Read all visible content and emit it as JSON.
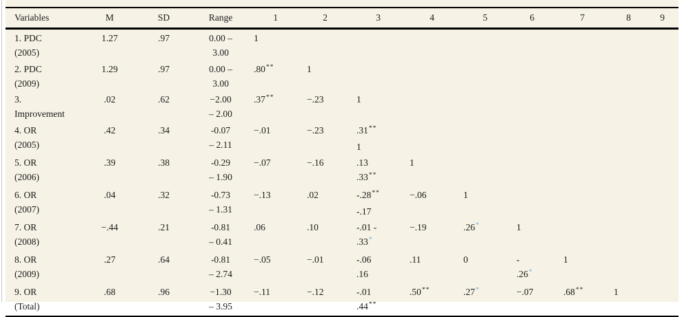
{
  "colors": {
    "page_background": "#f6f2e5",
    "margin_background": "#ffffff",
    "rule_color": "#000000",
    "text_color": "#1b1b1b",
    "footnote_link_blue": "#64acdb"
  },
  "table": {
    "headers": [
      "Variables",
      "M",
      "SD",
      "Range",
      "1",
      "2",
      "3",
      "4",
      "5",
      "6",
      "7",
      "8",
      "9"
    ],
    "rows": [
      {
        "variable": [
          "1. PDC",
          "(2005)"
        ],
        "m": "1.27",
        "sd": ".97",
        "range": [
          "0.00 –",
          "3.00"
        ],
        "corr": {
          "c1": [
            {
              "text": "1"
            }
          ]
        }
      },
      {
        "variable": [
          "2. PDC",
          "(2009)"
        ],
        "m": "1.29",
        "sd": ".97",
        "range": [
          "0.00 –",
          "3.00"
        ],
        "corr": {
          "c1": [
            {
              "text": ".80",
              "sup": "**"
            }
          ],
          "c2": [
            {
              "text": "1"
            }
          ]
        }
      },
      {
        "variable": [
          "3.",
          "Improvement"
        ],
        "m": ".02",
        "sd": ".62",
        "range": [
          "−2.00",
          "– 2.00"
        ],
        "corr": {
          "c1": [
            {
              "text": ".37",
              "sup": "**"
            }
          ],
          "c2": [
            {
              "text": "−.23"
            }
          ],
          "c3": [
            {
              "text": "1"
            }
          ]
        }
      },
      {
        "variable": [
          "4. OR",
          "(2005)"
        ],
        "m": ".42",
        "sd": ".34",
        "range": [
          "-0.07",
          "– 2.11"
        ],
        "corr": {
          "c1": [
            {
              "text": "−.01"
            }
          ],
          "c2": [
            {
              "text": "−.23"
            }
          ],
          "c3": [
            {
              "text": ".31",
              "sup": "**"
            },
            {
              "text": "1"
            }
          ]
        }
      },
      {
        "variable": [
          "5. OR",
          "(2006)"
        ],
        "m": ".39",
        "sd": ".38",
        "range": [
          "-0.29",
          "– 1.90"
        ],
        "corr": {
          "c1": [
            {
              "text": "−.07"
            }
          ],
          "c2": [
            {
              "text": "−.16"
            }
          ],
          "c3": [
            {
              "text": ".13"
            },
            {
              "text": ".33",
              "sup": "**"
            }
          ],
          "c4": [
            {
              "text": "1"
            }
          ]
        }
      },
      {
        "variable": [
          "6. OR",
          "(2007)"
        ],
        "m": ".04",
        "sd": ".32",
        "range": [
          "-0.73",
          "– 1.31"
        ],
        "corr": {
          "c1": [
            {
              "text": "−.13"
            }
          ],
          "c2": [
            {
              "text": ".02"
            }
          ],
          "c3": [
            {
              "text": "-.28",
              "sup": "**"
            },
            {
              "text": "-.17"
            }
          ],
          "c4": [
            {
              "text": "−.06"
            }
          ],
          "c5": [
            {
              "text": "1"
            }
          ]
        }
      },
      {
        "variable": [
          "7. OR",
          "(2008)"
        ],
        "m": "−.44",
        "sd": ".21",
        "range": [
          "-0.81",
          "– 0.41"
        ],
        "corr": {
          "c1": [
            {
              "text": ".06"
            }
          ],
          "c2": [
            {
              "text": ".10"
            }
          ],
          "c3": [
            {
              "text": "-.01 -"
            },
            {
              "text": ".33",
              "sup": "*",
              "supBlue": true
            }
          ],
          "c4": [
            {
              "text": "−.19"
            }
          ],
          "c5": [
            {
              "text": ".26",
              "sup": "*",
              "supBlue": true
            }
          ],
          "c6": [
            {
              "text": "1"
            }
          ]
        }
      },
      {
        "variable": [
          "8. OR",
          "(2009)"
        ],
        "m": ".27",
        "sd": ".64",
        "range": [
          "-0.81",
          "– 2.74"
        ],
        "corr": {
          "c1": [
            {
              "text": "−.05"
            }
          ],
          "c2": [
            {
              "text": "−.01"
            }
          ],
          "c3": [
            {
              "text": "-.06"
            },
            {
              "text": ".16"
            }
          ],
          "c4": [
            {
              "text": ".11"
            }
          ],
          "c5": [
            {
              "text": "0"
            }
          ],
          "c6": [
            {
              "text": "-"
            },
            {
              "text": ".26",
              "sup": "*",
              "supBlue": true
            }
          ],
          "c7": [
            {
              "text": "1"
            }
          ]
        }
      },
      {
        "variable": [
          "9. OR",
          "(Total)"
        ],
        "m": ".68",
        "sd": ".96",
        "range": [
          "−1.30",
          "– 3.95"
        ],
        "corr": {
          "c1": [
            {
              "text": "−.11"
            }
          ],
          "c2": [
            {
              "text": "−.12"
            }
          ],
          "c3": [
            {
              "text": "-.01"
            },
            {
              "text": ".44",
              "sup": "**"
            }
          ],
          "c4": [
            {
              "text": ".50",
              "sup": "**"
            }
          ],
          "c5": [
            {
              "text": ".27",
              "sup": "*",
              "supBlue": true
            }
          ],
          "c6": [
            {
              "text": "−.07"
            }
          ],
          "c7": [
            {
              "text": ".68",
              "sup": "**"
            }
          ],
          "c8": [
            {
              "text": "1"
            }
          ]
        }
      }
    ]
  }
}
